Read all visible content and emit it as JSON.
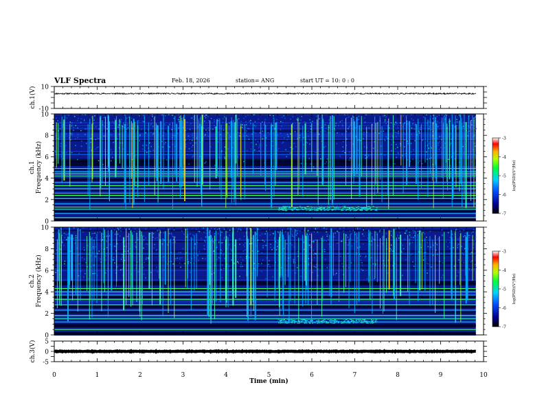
{
  "header": {
    "title": "VLF Spectra",
    "date": "Feb. 18, 2026",
    "station": "station= ANG",
    "start": "start  UT =   10: 0   : 0"
  },
  "chart_data": [
    {
      "name": "ch1-waveform",
      "type": "line",
      "ylabel": "ch.1(V)",
      "ylim": [
        -10,
        10
      ],
      "yticks": [
        "10",
        "-10"
      ],
      "x_range": [
        0,
        9.82
      ],
      "level": 3.5,
      "noise_amplitude": 0.6
    },
    {
      "name": "ch1-spectrogram",
      "type": "heatmap",
      "ylabel_line1": "ch.1",
      "ylabel_line2": "Frequency (kHz)",
      "ylim": [
        0,
        10
      ],
      "yticks": [
        "0",
        "2",
        "4",
        "6",
        "8",
        "10"
      ],
      "xlim": [
        0,
        10
      ],
      "data_extent_min": 9.82,
      "colorbar": {
        "label": "log(PSD)(V²/Hz)",
        "range": [
          -7,
          -3
        ],
        "ticks": [
          "-3",
          "-4",
          "-5",
          "-6",
          "-7"
        ]
      },
      "bands_khz": [
        0.3,
        0.7,
        1.1,
        1.3,
        1.6,
        2.1,
        2.4,
        2.6,
        3.0,
        3.3,
        3.6,
        4.2,
        4.4,
        4.6,
        4.9
      ],
      "dark_gaps_khz": [
        [
          0.8,
          1.0
        ],
        [
          1.9,
          2.0
        ],
        [
          3.8,
          4.0
        ],
        [
          5.2,
          5.8
        ]
      ],
      "noise_patch": {
        "t_start": 5.2,
        "t_end": 7.5,
        "f_low": 1.0,
        "f_high": 1.4
      }
    },
    {
      "name": "ch2-spectrogram",
      "type": "heatmap",
      "ylabel_line1": "ch.2",
      "ylabel_line2": "Frequency (kHz)",
      "ylim": [
        0,
        10
      ],
      "yticks": [
        "0",
        "2",
        "4",
        "6",
        "8",
        "10"
      ],
      "xlim": [
        0,
        10
      ],
      "data_extent_min": 9.82,
      "colorbar": {
        "label": "log(PSD)(V²/Hz)",
        "range": [
          -7,
          -3
        ],
        "ticks": [
          "-3",
          "-4",
          "-5",
          "-6",
          "-7"
        ]
      },
      "bands_khz": [
        0.5,
        1.2,
        1.5,
        1.8,
        2.3,
        2.8,
        3.3,
        3.7,
        4.0,
        4.3
      ],
      "dark_gaps_khz": [
        [
          0.7,
          1.0
        ],
        [
          2.5,
          2.7
        ],
        [
          3.4,
          3.6
        ],
        [
          4.6,
          5.0
        ]
      ],
      "noise_patch": {
        "t_start": 5.2,
        "t_end": 7.5,
        "f_low": 1.1,
        "f_high": 1.5
      }
    },
    {
      "name": "ch3-waveform",
      "type": "line",
      "ylabel": "ch.3(V)",
      "ylim": [
        -5,
        5
      ],
      "yticks": [
        "5",
        "0",
        "-5"
      ],
      "x_range": [
        0,
        9.82
      ],
      "level": 0,
      "noise_amplitude": 0.15
    }
  ],
  "x_axis": {
    "label": "Time (min)",
    "range": [
      0,
      10
    ],
    "ticks": [
      "0",
      "1",
      "2",
      "3",
      "4",
      "5",
      "6",
      "7",
      "8",
      "9",
      "10"
    ]
  }
}
